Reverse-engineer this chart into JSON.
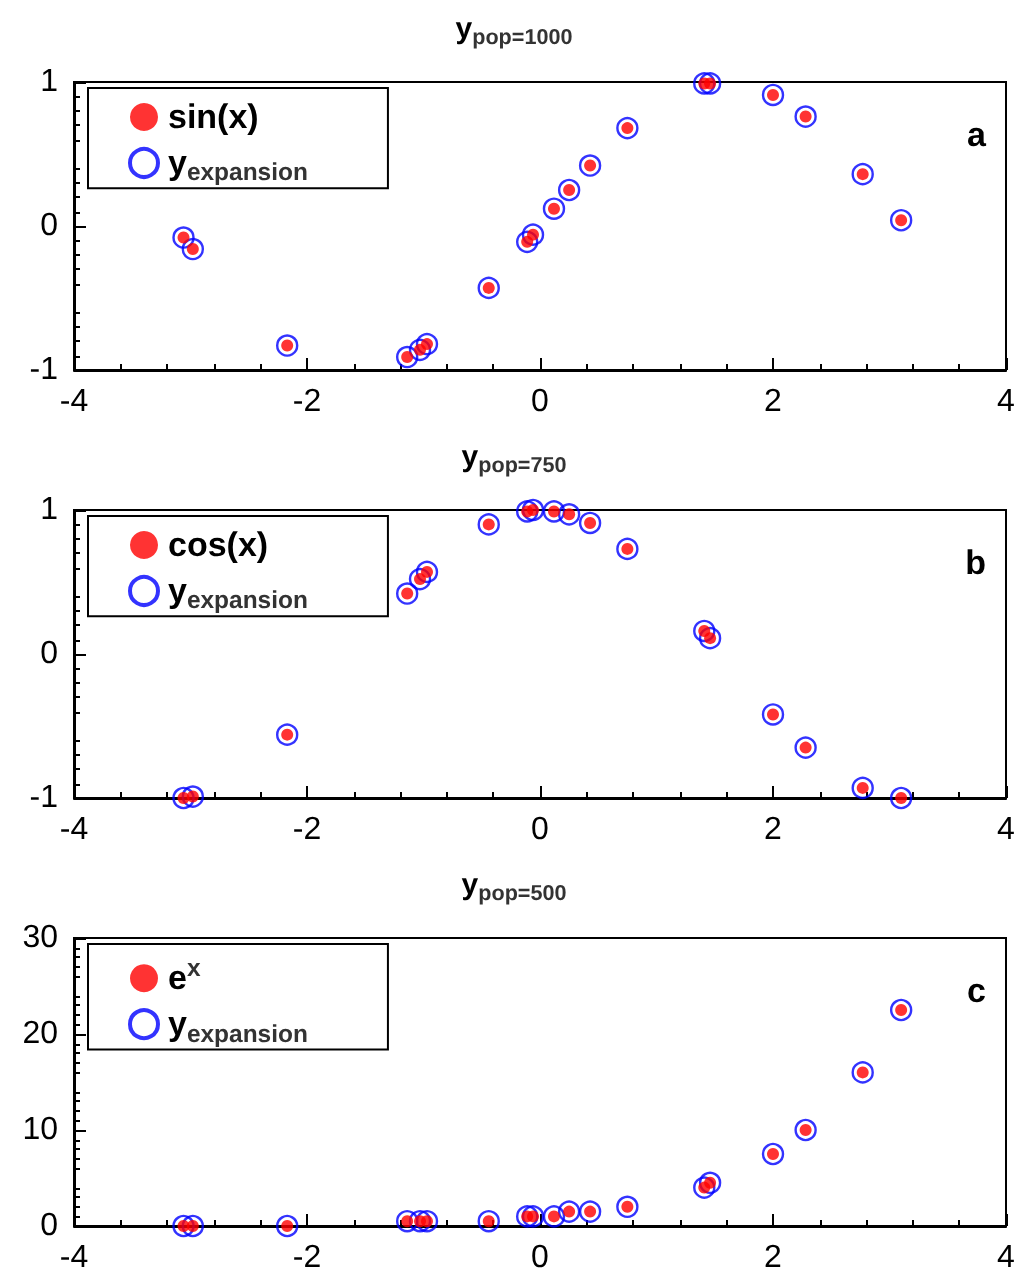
{
  "chart_data": [
    {
      "type": "scatter",
      "title": "y$_{pop=1000}$",
      "annotations": [
        "a"
      ],
      "x": [
        -3.06,
        -2.98,
        -2.17,
        -1.14,
        -1.03,
        -0.97,
        -0.44,
        -0.11,
        -0.06,
        0.12,
        0.25,
        0.43,
        0.75,
        1.41,
        1.46,
        2.0,
        2.28,
        2.77,
        3.1
      ],
      "series": [
        {
          "name": "sin(x)",
          "color": "#ff0000",
          "marker": "circle",
          "values": [
            -0.08,
            -0.16,
            -0.83,
            -0.91,
            -0.86,
            -0.82,
            -0.43,
            -0.11,
            -0.06,
            0.12,
            0.25,
            0.42,
            0.68,
            0.99,
            0.99,
            0.91,
            0.76,
            0.36,
            0.04
          ]
        },
        {
          "name": "y$_{expansion}$",
          "color": "#0000ff",
          "marker": "circle",
          "values": [
            -0.08,
            -0.16,
            -0.83,
            -0.91,
            -0.86,
            -0.82,
            -0.43,
            -0.11,
            -0.06,
            0.12,
            0.25,
            0.42,
            0.68,
            0.99,
            0.99,
            0.91,
            0.76,
            0.36,
            0.04
          ]
        }
      ],
      "xlim": [
        -4,
        4
      ],
      "xticks": [
        -4,
        -2,
        0,
        2,
        4
      ],
      "ylim": [
        -1,
        1
      ],
      "yticks": [
        -1,
        0,
        1
      ],
      "grid": false,
      "legend": "top left"
    },
    {
      "type": "scatter",
      "title": "y$_{pop=750}$",
      "annotations": [
        "b"
      ],
      "x": [
        -3.06,
        -2.98,
        -2.17,
        -1.14,
        -1.03,
        -0.97,
        -0.44,
        -0.11,
        -0.06,
        0.12,
        0.25,
        0.43,
        0.75,
        1.41,
        1.46,
        2.0,
        2.28,
        2.77,
        3.1
      ],
      "series": [
        {
          "name": "cos(x)",
          "color": "#ff0000",
          "marker": "circle",
          "values": [
            -1,
            -0.99,
            -0.56,
            0.42,
            0.52,
            0.57,
            0.9,
            0.99,
            1,
            0.99,
            0.97,
            0.91,
            0.73,
            0.16,
            0.11,
            -0.42,
            -0.65,
            -0.93,
            -1
          ]
        },
        {
          "name": "y$_{expansion}$",
          "color": "#0000ff",
          "marker": "circle",
          "values": [
            -1,
            -0.99,
            -0.56,
            0.42,
            0.52,
            0.57,
            0.9,
            0.99,
            1,
            0.99,
            0.97,
            0.91,
            0.73,
            0.16,
            0.11,
            -0.42,
            -0.65,
            -0.93,
            -1
          ]
        }
      ],
      "xlim": [
        -4,
        4
      ],
      "xticks": [
        -4,
        -2,
        0,
        2,
        4
      ],
      "ylim": [
        -1,
        1
      ],
      "yticks": [
        -1,
        0,
        1
      ],
      "grid": false,
      "legend": "top left"
    },
    {
      "type": "scatter",
      "title": "y$_{pop=500}$",
      "annotations": [
        "c"
      ],
      "x": [
        -3.06,
        -2.98,
        -2.17,
        -1.14,
        -1.03,
        -0.97,
        -0.44,
        -0.11,
        -0.06,
        0.12,
        0.25,
        0.43,
        0.75,
        1.41,
        1.46,
        2.0,
        2.28,
        2.77,
        3.1
      ],
      "series": [
        {
          "name": "e$^{x}$",
          "color": "#ff0000",
          "marker": "circle",
          "values": [
            0,
            0,
            0,
            0.5,
            0.5,
            0.5,
            0.5,
            1,
            1,
            1,
            1.5,
            1.5,
            2,
            4,
            4.5,
            7.5,
            10,
            16,
            22.5
          ]
        },
        {
          "name": "y$_{expansion}$",
          "color": "#0000ff",
          "marker": "circle",
          "values": [
            0,
            0,
            0,
            0.5,
            0.5,
            0.5,
            0.5,
            1,
            1,
            1,
            1.5,
            1.5,
            2,
            4,
            4.5,
            7.5,
            10,
            16,
            22.5
          ]
        }
      ],
      "xlim": [
        -4,
        4
      ],
      "xticks": [
        -4,
        -2,
        0,
        2,
        4
      ],
      "ylim": [
        0,
        30
      ],
      "yticks": [
        0,
        10,
        20,
        30
      ],
      "grid": false,
      "legend": "top left"
    }
  ]
}
